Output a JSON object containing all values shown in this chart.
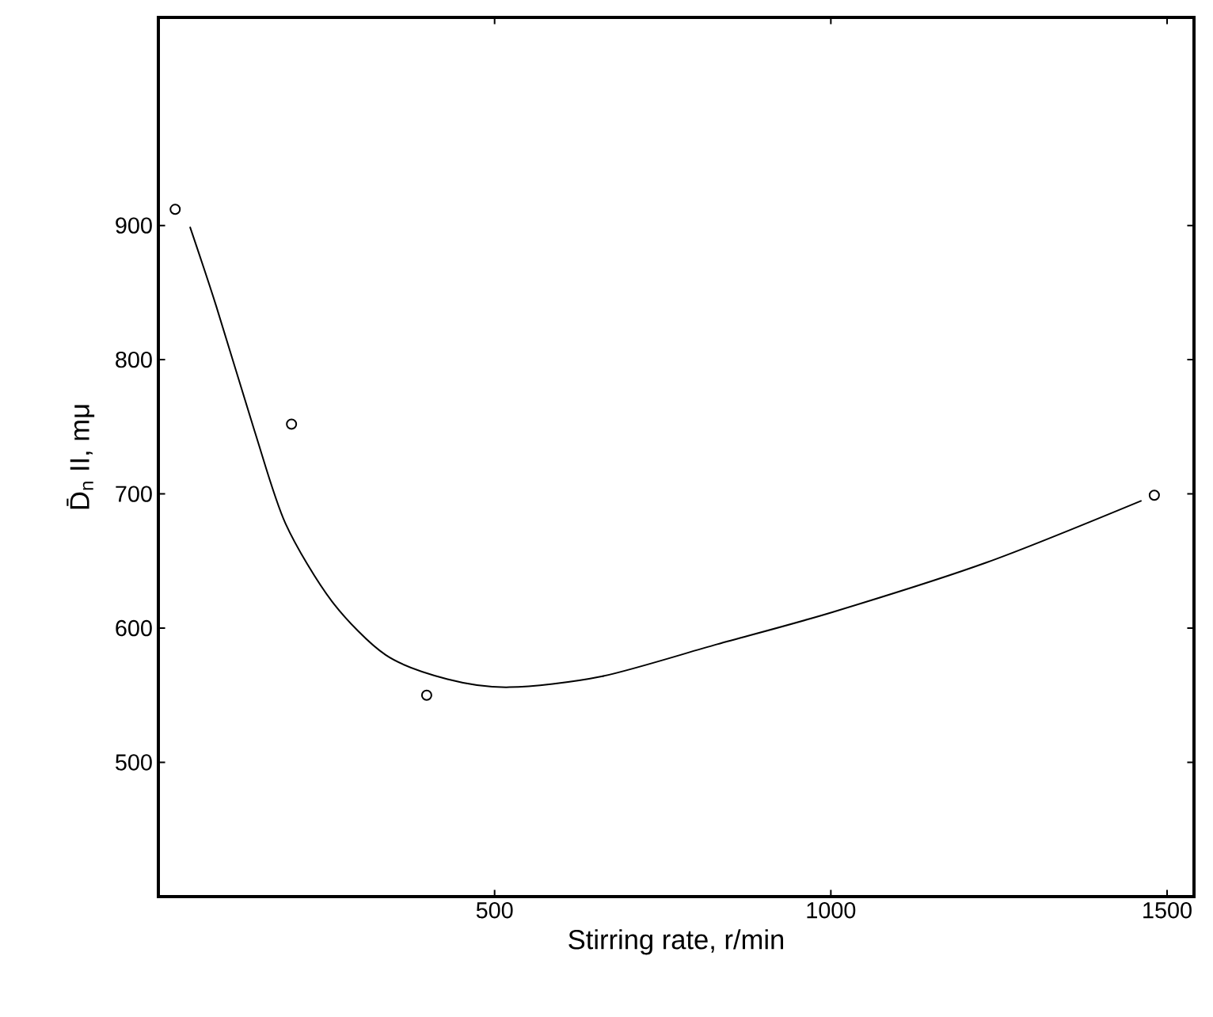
{
  "chart_data": {
    "type": "scatter",
    "xlabel": "Stirring rate, r/min",
    "ylabel": "D̄$_{n}$ II, mμ",
    "xlim": [
      0,
      1540
    ],
    "ylim": [
      400,
      1055
    ],
    "xticks": [
      500,
      1000,
      1500
    ],
    "yticks": [
      500,
      600,
      700,
      800,
      900
    ],
    "series": [
      {
        "color": "#000000",
        "marker": "circle",
        "x": [
          25,
          198,
          399,
          1481
        ],
        "values": [
          912,
          752,
          550,
          699
        ]
      },
      {
        "type": "line",
        "color": "#000000",
        "marker": "none",
        "x": [
          47,
          86,
          143,
          189,
          258,
          338,
          430,
          522,
          659,
          831,
          1003,
          1232,
          1462
        ],
        "values": [
          899,
          840,
          747,
          678,
          620,
          580,
          562,
          556,
          564,
          588,
          612,
          649,
          695
        ]
      }
    ]
  }
}
